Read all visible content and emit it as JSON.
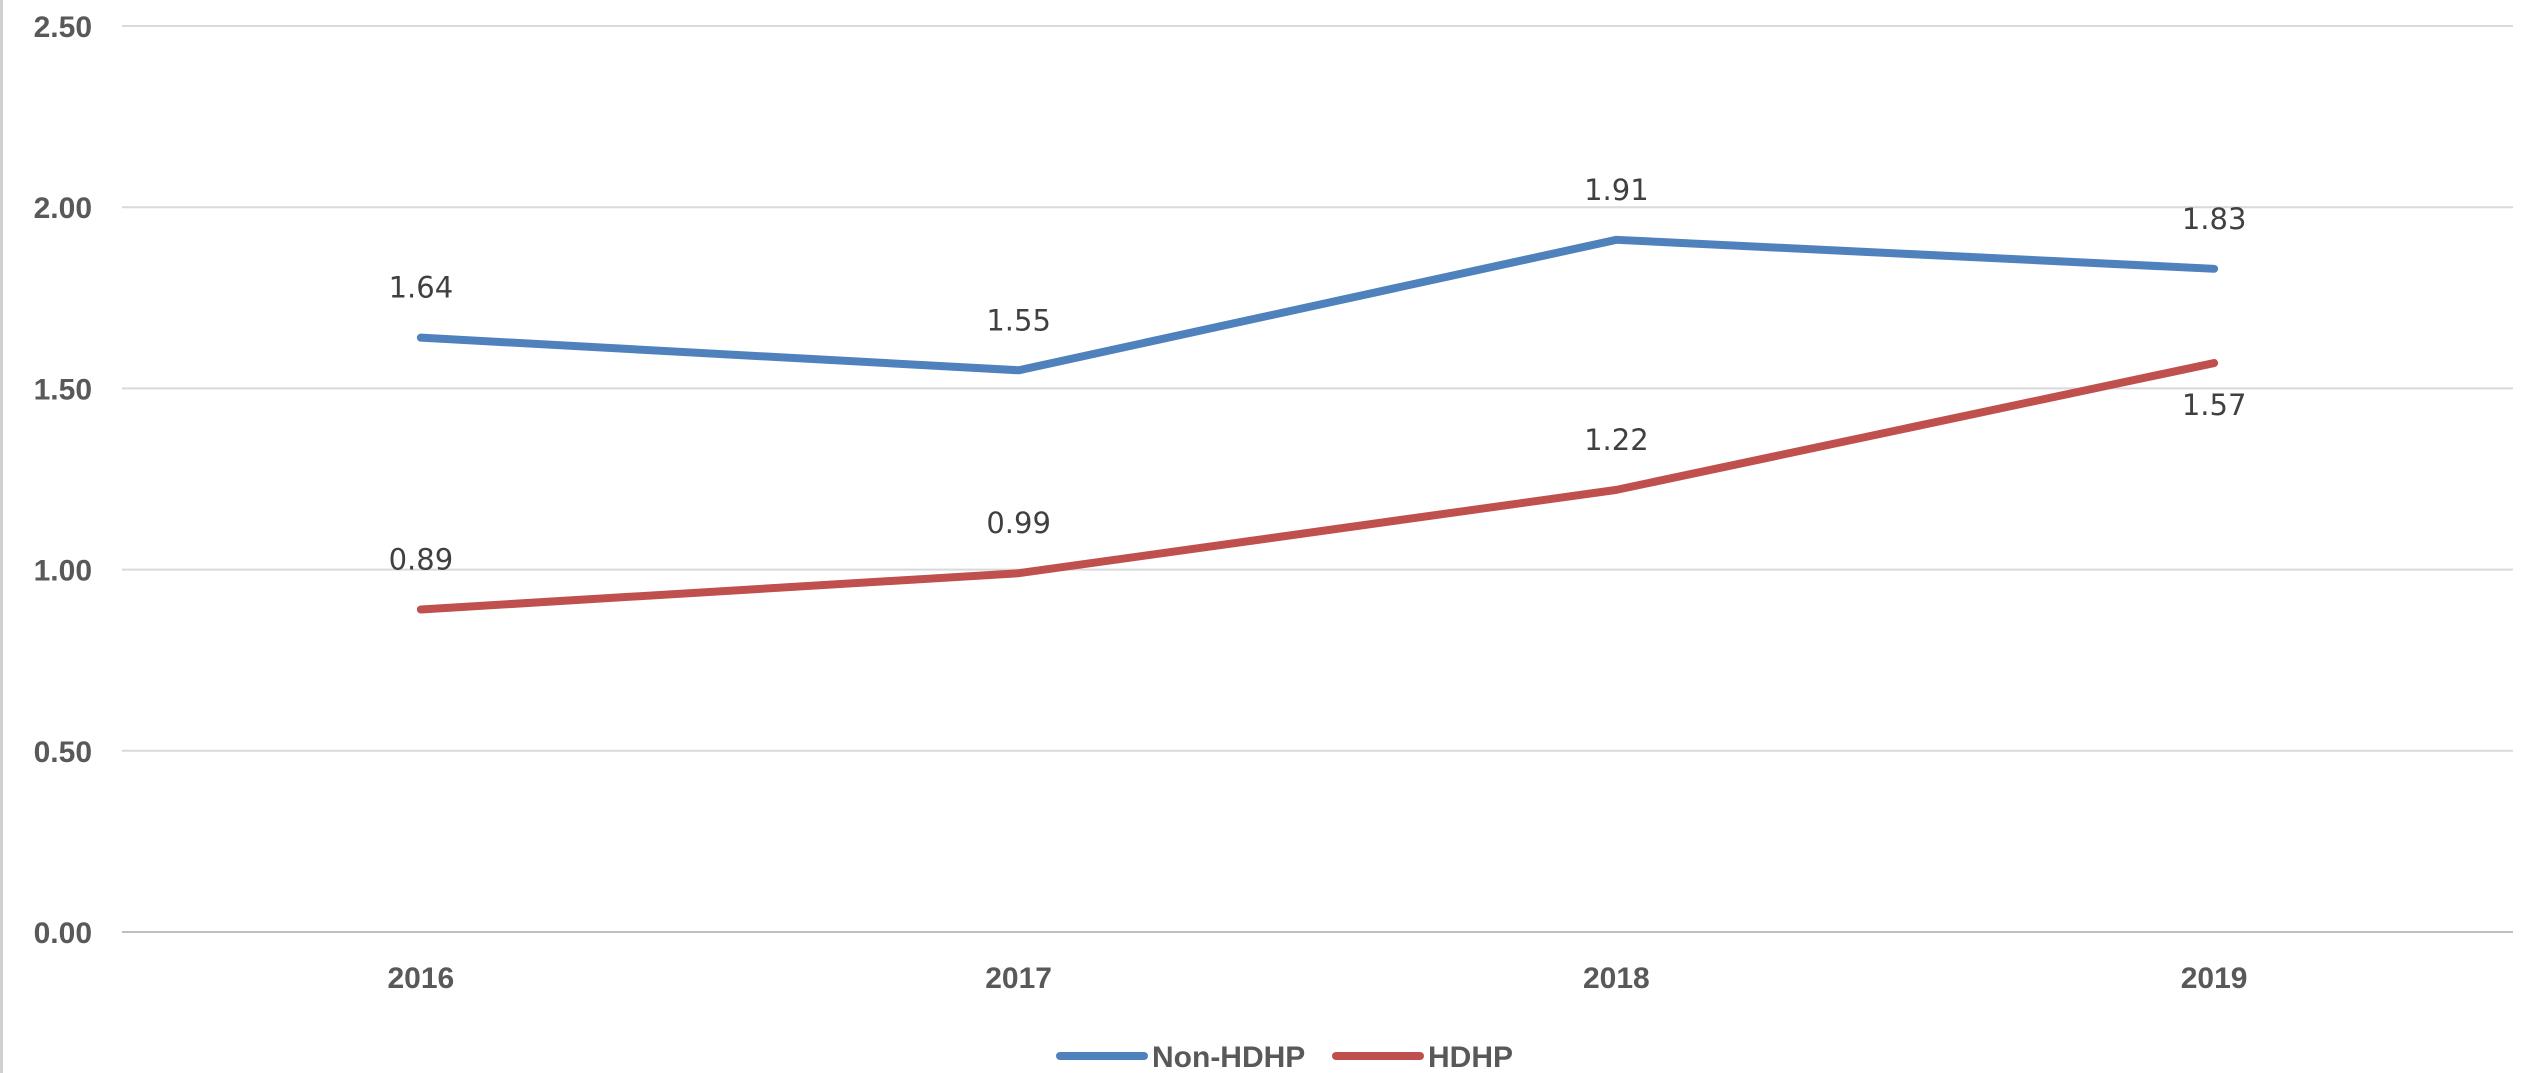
{
  "chart_data": {
    "type": "line",
    "categories": [
      "2016",
      "2017",
      "2018",
      "2019"
    ],
    "series": [
      {
        "name": "Non-HDHP",
        "values": [
          1.64,
          1.55,
          1.91,
          1.83
        ],
        "labels": [
          "1.64",
          "1.55",
          "1.91",
          "1.83"
        ],
        "color": "#4f81bd"
      },
      {
        "name": "HDHP",
        "values": [
          0.89,
          0.99,
          1.22,
          1.57
        ],
        "labels": [
          "0.89",
          "0.99",
          "1.22",
          "1.57"
        ],
        "color": "#c0504d"
      }
    ],
    "ylim": [
      0,
      2.5
    ],
    "yticks": [
      "0.00",
      "0.50",
      "1.00",
      "1.50",
      "2.00",
      "2.50"
    ],
    "grid": true,
    "legend_position": "bottom"
  }
}
